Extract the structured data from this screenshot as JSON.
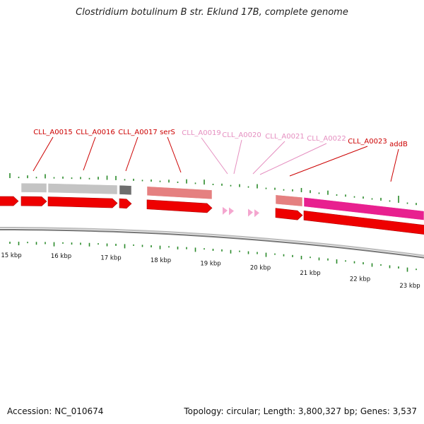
{
  "title": "Clostridium botulinum B str. Eklund 17B, complete genome",
  "footer": {
    "accession": "Accession: NC_010674",
    "summary": "Topology: circular; Length: 3,800,327 bp; Genes: 3,537"
  },
  "colors": {
    "cds_red": "#ee0000",
    "gene_gray": "#c4c4c4",
    "gene_dark": "#6e6e6e",
    "gene_salmon": "#e58080",
    "gene_magenta": "#e8208f",
    "label_red": "#cc0000",
    "label_pink": "#e58fc0",
    "tick_green": "#2a8a2a",
    "backbone": "#888888"
  },
  "axis": {
    "ticks": [
      {
        "kbp": 15,
        "label": "15 kbp"
      },
      {
        "kbp": 16,
        "label": "16 kbp"
      },
      {
        "kbp": 17,
        "label": "17 kbp"
      },
      {
        "kbp": 18,
        "label": "18 kbp"
      },
      {
        "kbp": 19,
        "label": "19 kbp"
      },
      {
        "kbp": 20,
        "label": "20 kbp"
      },
      {
        "kbp": 21,
        "label": "21 kbp"
      },
      {
        "kbp": 22,
        "label": "22 kbp"
      },
      {
        "kbp": 23,
        "label": "23 kbp"
      }
    ]
  },
  "gene_labels": [
    {
      "name": "CLL_A0015",
      "color": "label_red"
    },
    {
      "name": "CLL_A0016",
      "color": "label_red"
    },
    {
      "name": "CLL_A0017",
      "color": "label_red"
    },
    {
      "name": "serS",
      "color": "label_red"
    },
    {
      "name": "CLL_A0019",
      "color": "label_pink"
    },
    {
      "name": "CLL_A0020",
      "color": "label_pink"
    },
    {
      "name": "CLL_A0021",
      "color": "label_pink"
    },
    {
      "name": "CLL_A0022",
      "color": "label_pink"
    },
    {
      "name": "CLL_A0023",
      "color": "label_red"
    },
    {
      "name": "addB",
      "color": "label_red"
    }
  ]
}
